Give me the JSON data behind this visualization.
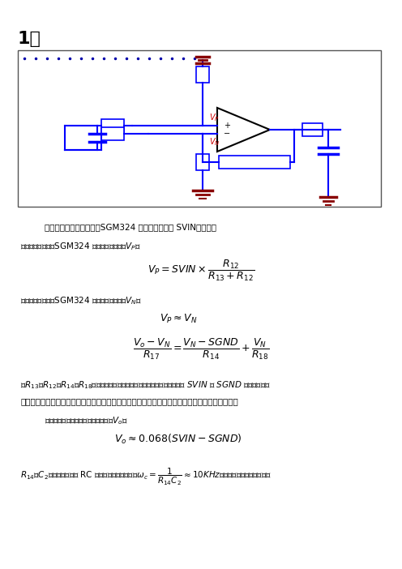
{
  "bg_color": "#ffffff",
  "fig_width": 4.96,
  "fig_height": 7.02,
  "title": "1、",
  "line1": "此电路是一个差放电路，SGM324 的同相输入端接 SVIN，所以：",
  "line2": "根据虚断的概念，SGM324 的同相输入端电压$V_P$：",
  "line3": "根据虚短的概念，SGM324 的反相输入端电压$V_N$：",
  "line4": "而$R_{13}$、$R_{12}$和$R_{14}$、$R_{14}$起到了分压作用，阻值大小的选取可以根据输入端 $SVIN$ 、 $SGND$ 的电压范围以",
  "line5": "及输出电压范围酔情选取。同时，如图中所写适当增大电阻可以减小蓄电池和太阳能回路的电流。",
  "line6": "根据上图中的参数可以得到输出电压$V_o$：",
  "line7": "$R_{14}$、$C_2$组成一个简单的 RC 滤波网络，其截止频率$\\omega_c = \\dfrac{1}{R_{14}C_2} \\approx 10KHz$（一般根据经验値选取）。"
}
